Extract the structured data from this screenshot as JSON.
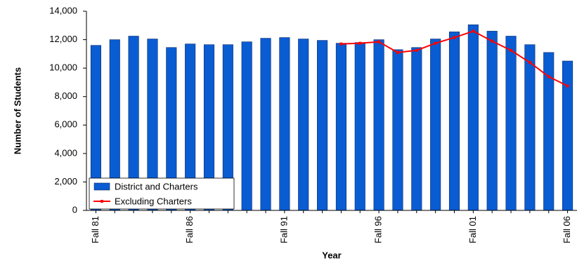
{
  "chart_data": {
    "type": "bar",
    "y_label": "Number of Students",
    "x_label": "Year",
    "categories": [
      "Fall 81",
      null,
      null,
      null,
      null,
      "Fall 86",
      null,
      null,
      null,
      null,
      "Fall 91",
      null,
      null,
      null,
      null,
      "Fall 96",
      null,
      null,
      null,
      null,
      "Fall 01",
      null,
      null,
      null,
      null,
      "Fall 06"
    ],
    "series": [
      {
        "name": "District and Charters",
        "type": "bar",
        "color": "#0a5cd2",
        "values": [
          11600,
          12000,
          12250,
          12050,
          11450,
          11700,
          11650,
          11650,
          11850,
          12100,
          12150,
          12050,
          11950,
          11750,
          11800,
          12000,
          11300,
          11450,
          12050,
          12550,
          13050,
          12600,
          12250,
          11650,
          11100,
          10500
        ]
      },
      {
        "name": "Excluding Charters",
        "type": "line",
        "color": "#ff0000",
        "values": [
          null,
          null,
          null,
          null,
          null,
          null,
          null,
          null,
          null,
          null,
          null,
          null,
          null,
          11700,
          11750,
          11850,
          11100,
          11250,
          11750,
          12150,
          12600,
          11900,
          11250,
          10400,
          9400,
          8750
        ]
      }
    ],
    "ylim": [
      0,
      14000
    ],
    "yticks": [
      0,
      {
        "value": 2000,
        "label": "2,000"
      },
      {
        "value": 4000,
        "label": "4,000"
      },
      {
        "value": 6000,
        "label": "6,000"
      },
      {
        "value": 8000,
        "label": "8,000"
      },
      {
        "value": 10000,
        "label": "10,000"
      },
      {
        "value": 12000,
        "label": "12,000"
      },
      {
        "value": 14000,
        "label": "14,000"
      }
    ],
    "legend": "lower-left"
  }
}
